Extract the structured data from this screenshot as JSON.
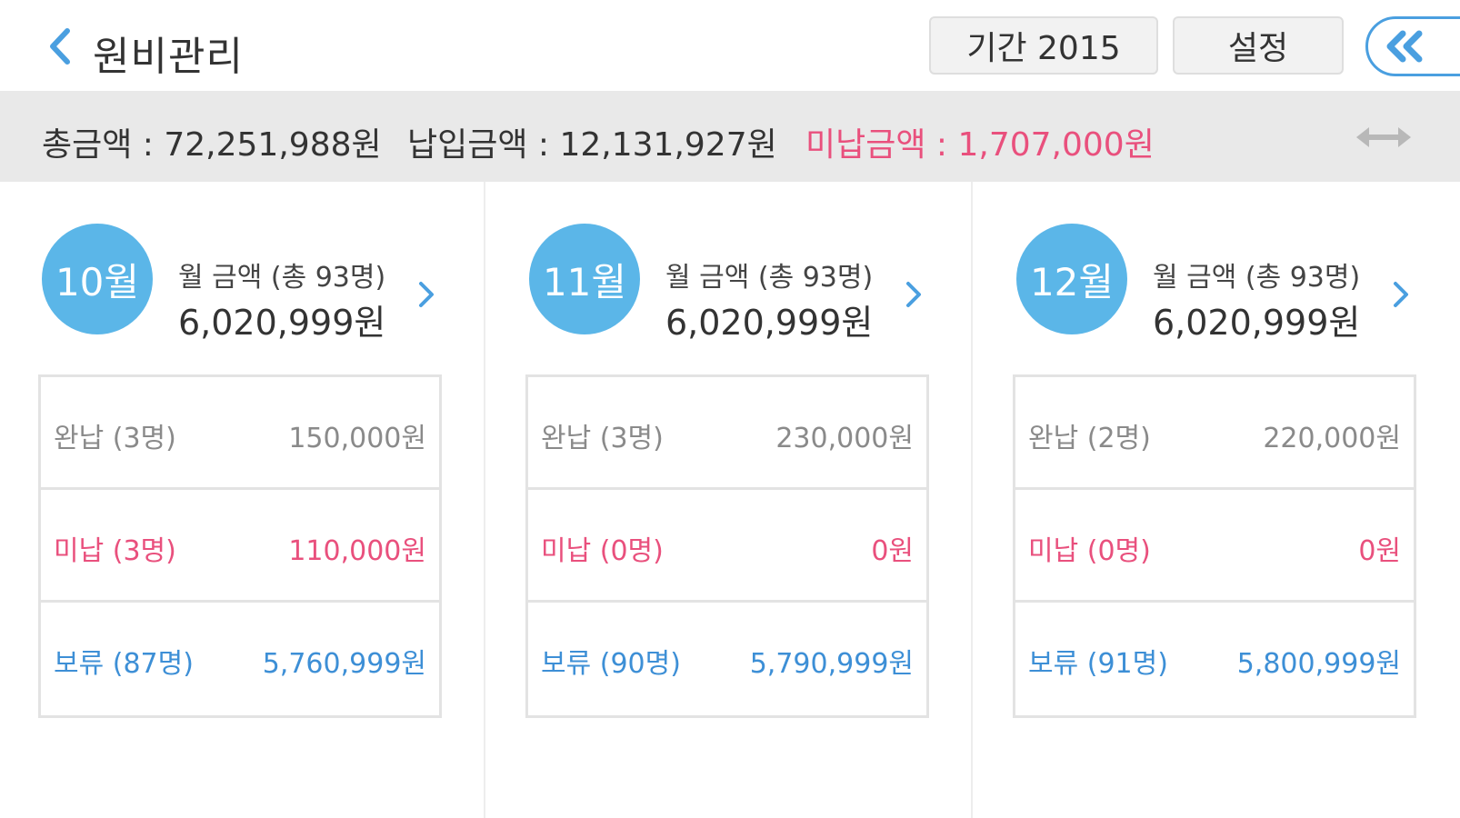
{
  "header": {
    "title": "원비관리",
    "period_label": "기간 2015",
    "settings_label": "설정"
  },
  "summary": {
    "total": "총금액 : 72,251,988원",
    "paid": "납입금액 : 12,131,927원",
    "unpaid": "미납금액 : 1,707,000원"
  },
  "colors": {
    "accent_blue": "#5bb6e8",
    "link_blue": "#3d8fd6",
    "unpaid_pink": "#e9507d",
    "paid_gray": "#8a8a8a",
    "summary_bg": "#e9e9e9"
  },
  "icons": {
    "back": "chevron-left-icon",
    "collapse": "double-chevron-left-icon",
    "swap": "horizontal-arrows-icon",
    "month_detail": "chevron-right-icon"
  },
  "months": [
    {
      "badge": "10월",
      "label": "월 금액 (총 93명)",
      "amount": "6,020,999원",
      "rows": [
        {
          "label": "완납 (3명)",
          "value": "150,000원"
        },
        {
          "label": "미납 (3명)",
          "value": "110,000원"
        },
        {
          "label": "보류 (87명)",
          "value": "5,760,999원"
        }
      ]
    },
    {
      "badge": "11월",
      "label": "월 금액 (총 93명)",
      "amount": "6,020,999원",
      "rows": [
        {
          "label": "완납 (3명)",
          "value": "230,000원"
        },
        {
          "label": "미납 (0명)",
          "value": "0원"
        },
        {
          "label": "보류 (90명)",
          "value": "5,790,999원"
        }
      ]
    },
    {
      "badge": "12월",
      "label": "월 금액 (총 93명)",
      "amount": "6,020,999원",
      "rows": [
        {
          "label": "완납 (2명)",
          "value": "220,000원"
        },
        {
          "label": "미납 (0명)",
          "value": "0원"
        },
        {
          "label": "보류 (91명)",
          "value": "5,800,999원"
        }
      ]
    }
  ]
}
